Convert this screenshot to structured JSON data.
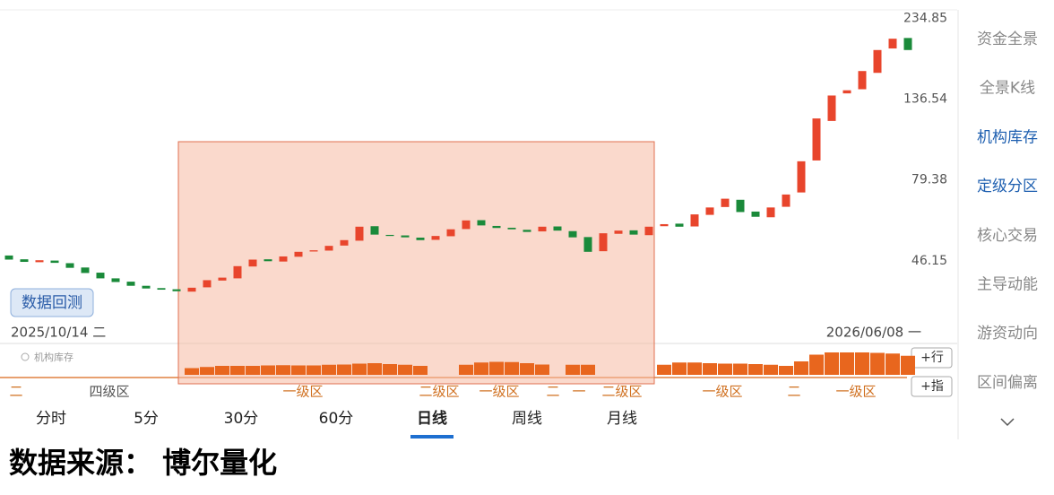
{
  "chart_data": {
    "type": "candlestick",
    "open": [
      47.8,
      46.6,
      45.7,
      46.2,
      45.4,
      44.1,
      42.6,
      41.0,
      40.1,
      39.0,
      38.4,
      38.1,
      37.5,
      38.6,
      40.4,
      41.0,
      44.4,
      46.6,
      45.9,
      47.4,
      49.1,
      49.4,
      51.1,
      52.8,
      58.2,
      54.9,
      54.7,
      53.9,
      53.1,
      54.4,
      57.1,
      60.6,
      58.3,
      57.6,
      56.8,
      56.2,
      58.1,
      56.3,
      54.1,
      49.2,
      55.3,
      56.6,
      54.8,
      58.2,
      59.2,
      58.1,
      62.8,
      66.2,
      69.5,
      64.2,
      61.8,
      66.3,
      73.0,
      90.5,
      118.0,
      142.0,
      146.0,
      163.0,
      192.0,
      206.0
    ],
    "close": [
      46.5,
      45.8,
      46.3,
      45.5,
      44.0,
      42.5,
      41.0,
      40.0,
      39.0,
      38.3,
      38.0,
      37.6,
      38.5,
      40.5,
      41.2,
      44.5,
      46.5,
      46.0,
      47.5,
      49.0,
      49.5,
      51.0,
      53.0,
      58.0,
      55.0,
      54.5,
      54.0,
      53.0,
      54.5,
      57.0,
      60.5,
      58.5,
      57.5,
      57.0,
      56.0,
      58.0,
      56.5,
      54.0,
      49.0,
      55.5,
      56.5,
      55.0,
      58.0,
      59.0,
      58.0,
      63.0,
      66.0,
      70.0,
      64.0,
      62.0,
      66.0,
      72.0,
      90.0,
      120.0,
      140.0,
      145.0,
      165.0,
      190.0,
      205.0,
      190.0
    ],
    "ylim": [
      36,
      240
    ],
    "yticks": [
      234.85,
      136.54,
      79.38,
      46.15
    ],
    "log_scale": true,
    "up_color": "#e8452c",
    "down_color": "#1a8a3a",
    "start_date": "2025/10/14 二",
    "end_date": "2026/06/08 一",
    "holdings_name": "机构库存",
    "holdings_color": "#e8661e",
    "holdings_ylim": [
      0,
      12
    ],
    "holdings": [
      0,
      0,
      0,
      0,
      0,
      0,
      0,
      0,
      0,
      0,
      0,
      0,
      3,
      3.5,
      4,
      4,
      4,
      4.2,
      4.3,
      4.2,
      4.2,
      4.5,
      4.6,
      5,
      5.2,
      4.8,
      4.5,
      4,
      0,
      0,
      4.5,
      5.5,
      5.8,
      5.7,
      5.2,
      4.6,
      0,
      4.5,
      4.5,
      0,
      0,
      0,
      0,
      4.5,
      5.5,
      5.5,
      5.2,
      5,
      5,
      4.8,
      4.5,
      4,
      6,
      9,
      10,
      10,
      10,
      9.8,
      9.5,
      8.5
    ],
    "zones": [
      "二",
      "四级区",
      "一级区",
      "二级区",
      "一级区",
      "二",
      "一",
      "二级区",
      "一级区",
      "二",
      "一级区"
    ]
  },
  "backtest_button": "数据回测",
  "buttons": [
    "+行",
    "+指"
  ],
  "tabs": [
    "分时",
    "5分",
    "30分",
    "60分",
    "日线",
    "周线",
    "月线"
  ],
  "sidebar": [
    "资金全景",
    "全景K线",
    "机构库存",
    "定级分区",
    "核心交易",
    "主导动能",
    "游资动向",
    "区间偏离"
  ],
  "footer": "数据来源： 博尔量化"
}
